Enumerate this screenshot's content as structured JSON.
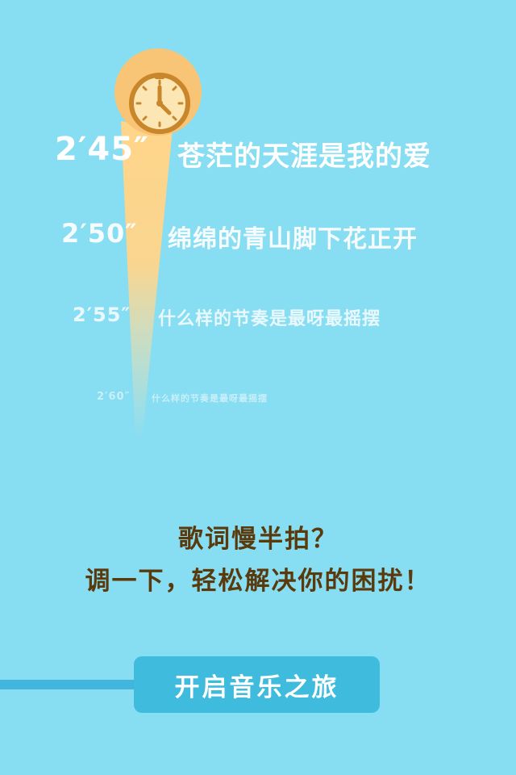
{
  "lyrics": [
    {
      "time": "2′45″",
      "text": "苍茫的天涯是我的爱"
    },
    {
      "time": "2′50″",
      "text": "绵绵的青山脚下花正开"
    },
    {
      "time": "2′55″",
      "text": "什么样的节奏是最呀最摇摆"
    },
    {
      "time": "2′60″",
      "text": "什么样的节奏是最呀最摇摆"
    }
  ],
  "headline": {
    "line1": "歌词慢半拍？",
    "line2": "调一下，轻松解决你的困扰！"
  },
  "start_button": {
    "label": "开启音乐之旅"
  },
  "colors": {
    "background": "#87DDF2",
    "headline_text": "#5A3A0C",
    "button": "#3FBBDE",
    "clock_gold": "#F5C170",
    "beam": "#FFD58A"
  },
  "icons": {
    "clock": "clock-icon"
  }
}
